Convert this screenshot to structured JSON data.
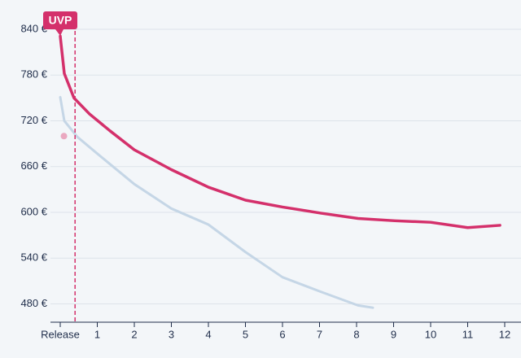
{
  "chart_data": {
    "type": "line",
    "annotation": {
      "label": "UVP",
      "x": 0.4,
      "color": "#d4306b"
    },
    "xlim": [
      0,
      12
    ],
    "xticks": [
      {
        "value": 0,
        "label": "Release"
      },
      1,
      2,
      3,
      4,
      5,
      6,
      7,
      8,
      9,
      10,
      11,
      12
    ],
    "ylim": [
      456,
      856
    ],
    "yticks": [
      {
        "value": 480,
        "label": "480 €"
      },
      {
        "value": 540,
        "label": "540 €"
      },
      {
        "value": 600,
        "label": "600 €"
      },
      {
        "value": 660,
        "label": "660 €"
      },
      {
        "value": 720,
        "label": "720 €"
      },
      {
        "value": 780,
        "label": "780 €"
      },
      {
        "value": 840,
        "label": "840 €"
      }
    ],
    "grid": true,
    "series": [
      {
        "color": "#c5d6e6",
        "x": [
          0,
          0.11,
          0.46,
          1,
          2,
          3,
          4,
          5,
          6,
          7.03,
          8.04,
          8.44
        ],
        "values": [
          751,
          720,
          699,
          677,
          637,
          605,
          584,
          548,
          515,
          496,
          478,
          475
        ]
      },
      {
        "color": "#d4306b",
        "x": [
          0,
          0.11,
          0.37,
          0.79,
          1.34,
          2,
          3,
          4,
          5,
          6,
          7.03,
          8.04,
          9.03,
          10,
          11,
          11.87
        ],
        "values": [
          831,
          782,
          750,
          729,
          707,
          682,
          656,
          633,
          616,
          607,
          599,
          592,
          589,
          587,
          580,
          583
        ]
      }
    ],
    "points": [
      {
        "x": 0.1,
        "y": 700,
        "color": "#eaa8c0"
      }
    ]
  }
}
